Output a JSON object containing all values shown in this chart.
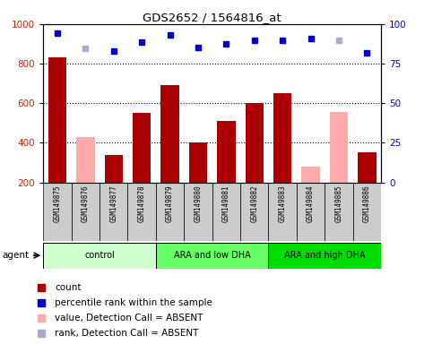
{
  "title": "GDS2652 / 1564816_at",
  "samples": [
    "GSM149875",
    "GSM149876",
    "GSM149877",
    "GSM149878",
    "GSM149879",
    "GSM149880",
    "GSM149881",
    "GSM149882",
    "GSM149883",
    "GSM149884",
    "GSM149885",
    "GSM149886"
  ],
  "bar_values": [
    830,
    430,
    340,
    550,
    690,
    400,
    510,
    600,
    650,
    280,
    555,
    350
  ],
  "bar_absent": [
    false,
    true,
    false,
    false,
    false,
    false,
    false,
    false,
    false,
    true,
    true,
    false
  ],
  "rank_values": [
    94,
    84.5,
    83,
    88.5,
    93,
    85,
    87.5,
    90,
    89.5,
    91,
    89.5,
    82
  ],
  "rank_absent": [
    false,
    true,
    false,
    false,
    false,
    false,
    false,
    false,
    false,
    false,
    true,
    false
  ],
  "groups": [
    {
      "label": "control",
      "start": 0,
      "end": 3,
      "color": "#ccffcc"
    },
    {
      "label": "ARA and low DHA",
      "start": 4,
      "end": 7,
      "color": "#66ff66"
    },
    {
      "label": "ARA and high DHA",
      "start": 8,
      "end": 11,
      "color": "#00dd00"
    }
  ],
  "ylim_left": [
    200,
    1000
  ],
  "ylim_right": [
    0,
    100
  ],
  "yticks_left": [
    200,
    400,
    600,
    800,
    1000
  ],
  "yticks_right": [
    0,
    25,
    50,
    75,
    100
  ],
  "grid_values": [
    400,
    600,
    800
  ],
  "bar_color_present": "#aa0000",
  "bar_color_absent": "#ffaaaa",
  "rank_color_present": "#0000cc",
  "rank_color_absent": "#aaaacc",
  "sample_box_color": "#cccccc",
  "figsize": [
    4.83,
    3.84
  ],
  "dpi": 100
}
